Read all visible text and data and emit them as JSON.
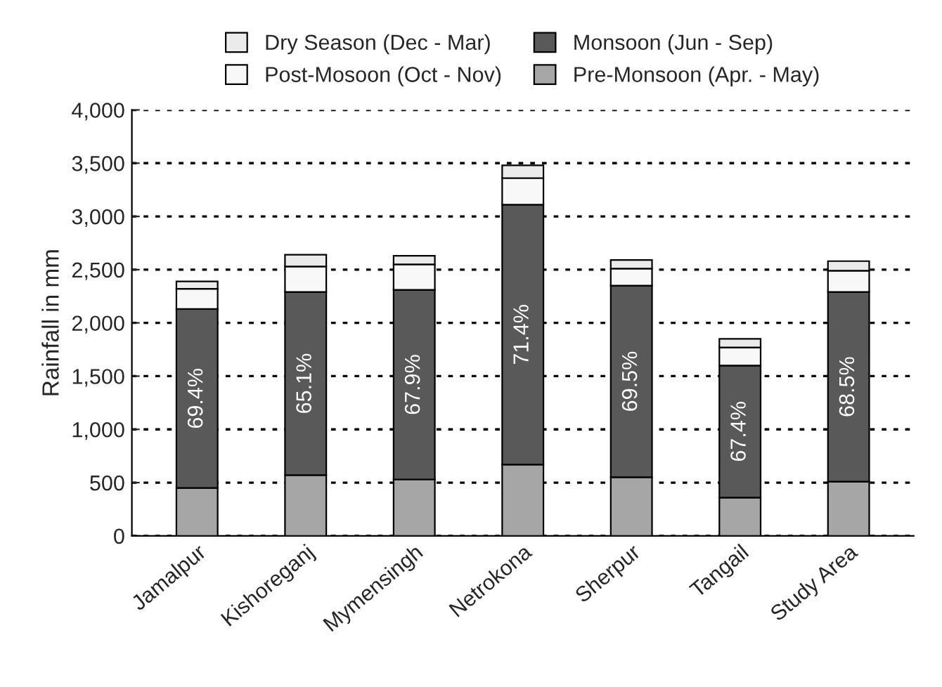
{
  "chart_data": {
    "type": "bar",
    "stacked": true,
    "ylabel": "Rainfall in mm",
    "categories": [
      "Jamalpur",
      "Kishoreganj",
      "Mymensingh",
      "Netrokona",
      "Sherpur",
      "Tangail",
      "Study Area"
    ],
    "series": [
      {
        "name": "Pre-Monsoon (Apr. - May)",
        "color": "#a6a6a6",
        "values": [
          450,
          570,
          530,
          670,
          550,
          360,
          510
        ]
      },
      {
        "name": "Monsoon (Jun - Sep)",
        "color": "#595959",
        "values": [
          1680,
          1720,
          1780,
          2440,
          1800,
          1240,
          1780
        ]
      },
      {
        "name": "Post-Mosoon (Oct - Nov)",
        "color": "#f8f8f8",
        "values": [
          190,
          240,
          240,
          250,
          160,
          170,
          200
        ]
      },
      {
        "name": "Dry Season (Dec - Mar)",
        "color": "#ebebeb",
        "values": [
          70,
          110,
          80,
          120,
          80,
          80,
          90
        ]
      }
    ],
    "annotations": [
      "69.4%",
      "65.1%",
      "67.9%",
      "71.4%",
      "69.5%",
      "67.4%",
      "68.5%"
    ],
    "ylim": [
      0,
      4000
    ],
    "yticks": [
      0,
      500,
      {
        "value": 1000,
        "label": "1,000"
      },
      {
        "value": 1500,
        "label": "1,500"
      },
      {
        "value": 2000,
        "label": "2,000"
      },
      {
        "value": 2500,
        "label": "2,500"
      },
      {
        "value": 3000,
        "label": "3,000"
      },
      {
        "value": 3500,
        "label": "3,500"
      },
      {
        "value": 4000,
        "label": "4,000"
      }
    ],
    "grid": "y",
    "legend": "top"
  }
}
